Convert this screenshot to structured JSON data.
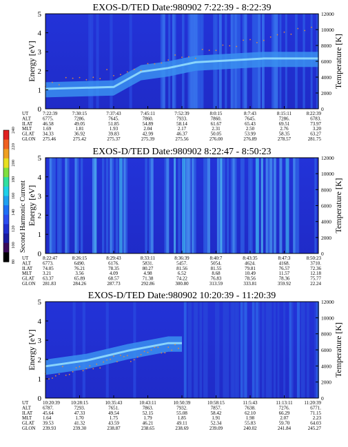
{
  "colorbar": {
    "label": "Second Harmonic Current",
    "ticks": [
      "80",
      "100",
      "120",
      "140",
      "160",
      "180",
      "200",
      "220",
      "240"
    ],
    "colors": [
      "#000000",
      "#3a0a5a",
      "#1a1aa0",
      "#1f2fd0",
      "#2b4df0",
      "#1e6ff5",
      "#1fa0f0",
      "#1fd0e8",
      "#30e0a0",
      "#80e040",
      "#e8e020",
      "#f0a020",
      "#f06020",
      "#e02020"
    ]
  },
  "chart_data": [
    {
      "type": "heatmap",
      "title": "EXOS-D/TED   Date:980902  7:22:39 - 8:22:39",
      "ylabel": "Energy [eV]",
      "y2label": "Temperature [K]",
      "ylim": [
        0,
        5
      ],
      "y2lim": [
        0,
        12000
      ],
      "yticks": [
        "0",
        "1",
        "2",
        "3",
        "4",
        "5"
      ],
      "y2ticks": [
        "0",
        "2000",
        "4000",
        "6000",
        "8000",
        "10000",
        "12000"
      ],
      "band_profile": [
        [
          0,
          1.4
        ],
        [
          0.25,
          1.5
        ],
        [
          0.35,
          2.3
        ],
        [
          0.45,
          2.5
        ],
        [
          0.55,
          2.8
        ],
        [
          0.8,
          3.0
        ],
        [
          1,
          3.0
        ]
      ],
      "row_labels": [
        "UT",
        "ALT",
        "ILAT",
        "MLT",
        "GLAT",
        "GLON"
      ],
      "columns": [
        [
          "7:22:39",
          "6775.",
          "46.58",
          "1.69",
          "34.33",
          "275.46"
        ],
        [
          "7:30:15",
          "7286.",
          "49.05",
          "1.81",
          "36.92",
          "275.42"
        ],
        [
          "7:37:43",
          "7645.",
          "51.85",
          "1.93",
          "39.83",
          "275.37"
        ],
        [
          "7:45:11",
          "7860.",
          "54.89",
          "2.04",
          "42.99",
          "275.39"
        ],
        [
          "7:52:39",
          "7933.",
          "58.14",
          "2.17",
          "46.37",
          "275.56"
        ],
        [
          "8:0:15",
          "7860.",
          "61.67",
          "2.31",
          "50.05",
          "276.00"
        ],
        [
          "8:7:43",
          "7645.",
          "65.43",
          "2.50",
          "53.99",
          "276.89"
        ],
        [
          "8:15:11",
          "7286.",
          "69.51",
          "2.76",
          "58.35",
          "278.57"
        ],
        [
          "8:22:39",
          "6783.",
          "73.97",
          "3.20",
          "63.27",
          "281.75"
        ]
      ]
    },
    {
      "type": "heatmap",
      "title": "EXOS-D/TED   Date:980902  8:22:47 - 8:50:23",
      "ylabel": "Energy [eV]",
      "y2label": "Temperature [K]",
      "ylim": [
        0,
        5
      ],
      "y2lim": [
        0,
        12000
      ],
      "yticks": [
        "0",
        "1",
        "2",
        "3",
        "4",
        "5"
      ],
      "y2ticks": [
        "0",
        "2000",
        "4000",
        "6000",
        "8000",
        "10000",
        "12000"
      ],
      "row_labels": [
        "UT",
        "ALT",
        "ILAT",
        "MLT",
        "GLAT",
        "GLON"
      ],
      "columns": [
        [
          "8:22:47",
          "6773.",
          "74.05",
          "3.21",
          "63.37",
          "281.83"
        ],
        [
          "8:26:15",
          "6490.",
          "76.21",
          "3.56",
          "65.89",
          "284.26"
        ],
        [
          "8:29:43",
          "6176.",
          "78.35",
          "4.09",
          "68.57",
          "287.73"
        ],
        [
          "8:33:11",
          "5831.",
          "80.27",
          "4.98",
          "71.38",
          "292.86"
        ],
        [
          "8:36:39",
          "5457.",
          "81.56",
          "6.52",
          "74.22",
          "300.80"
        ],
        [
          "8:40:7",
          "5054.",
          "81.55",
          "8.68",
          "76.83",
          "313.59"
        ],
        [
          "8:43:35",
          "4624.",
          "79.81",
          "10.49",
          "78.56",
          "333.81"
        ],
        [
          "8:47:3",
          "4168.",
          "76.57",
          "11.57",
          "78.36",
          "359.92"
        ],
        [
          "8:50:23",
          "3710.",
          "72.36",
          "12.18",
          "75.77",
          "22.24"
        ]
      ]
    },
    {
      "type": "heatmap",
      "title": "EXOS-D/TED   Date:980902  10:20:39 - 11:20:39",
      "ylabel": "Energy [eV]",
      "y2label": "Temperature [K]",
      "ylim": [
        0,
        5
      ],
      "y2lim": [
        0,
        12000
      ],
      "yticks": [
        "0",
        "1",
        "2",
        "3",
        "4",
        "5"
      ],
      "y2ticks": [
        "0",
        "2000",
        "4000",
        "6000",
        "8000",
        "10000",
        "12000"
      ],
      "band_profile": [
        [
          0,
          2.0
        ],
        [
          0.15,
          2.3
        ],
        [
          0.3,
          2.8
        ],
        [
          0.45,
          3.2
        ],
        [
          0.5,
          3.2
        ]
      ],
      "row_labels": [
        "UT",
        "ALT",
        "ILAT",
        "MLT",
        "GLAT",
        "GLON"
      ],
      "columns": [
        [
          "10:20:39",
          "6787.",
          "45.64",
          "1.64",
          "39.53",
          "239.93"
        ],
        [
          "10:28:15",
          "7293.",
          "47.33",
          "1.70",
          "41.32",
          "239.30"
        ],
        [
          "10:35:43",
          "7651.",
          "49.54",
          "1.75",
          "43.59",
          "238.87"
        ],
        [
          "10:43:11",
          "7863.",
          "52.15",
          "1.79",
          "46.21",
          "238.65"
        ],
        [
          "10:50:39",
          "7932.",
          "55.08",
          "1.85",
          "49.11",
          "238.69"
        ],
        [
          "10:58:15",
          "7857.",
          "58.42",
          "1.91",
          "52.34",
          "239.09"
        ],
        [
          "11:5:43",
          "7638.",
          "62.10",
          "1.98",
          "55.83",
          "240.02"
        ],
        [
          "11:13:11",
          "7276.",
          "66.29",
          "2.07",
          "59.70",
          "241.84"
        ],
        [
          "11:20:39",
          "6771.",
          "71.15",
          "2.23",
          "64.03",
          "245.27"
        ]
      ]
    }
  ]
}
